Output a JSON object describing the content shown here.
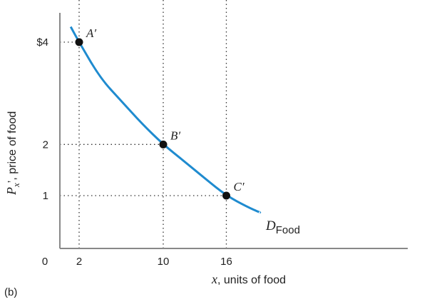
{
  "chart_data": {
    "type": "line",
    "panel_label": "(b)",
    "xlabel": {
      "var": "x",
      "rest": ", units of food"
    },
    "ylabel": {
      "var": "P",
      "sub": "x",
      "rest": "’, price of food"
    },
    "origin_label": "0",
    "x_ticks": [
      "2",
      "10",
      "16"
    ],
    "y_ticks": [
      "$4",
      "2",
      "1"
    ],
    "series": [
      {
        "name": "D",
        "name_sub": "Food",
        "color": "#1f8bcf",
        "x": [
          1.2,
          2,
          4,
          6,
          8,
          10,
          12,
          14,
          16,
          18,
          19.2
        ],
        "y": [
          4.3,
          4,
          3.3,
          2.85,
          2.4,
          2,
          1.67,
          1.33,
          1,
          0.78,
          0.67
        ]
      }
    ],
    "points": [
      {
        "label": "A′",
        "x": 2,
        "y": 4
      },
      {
        "label": "B′",
        "x": 10,
        "y": 2
      },
      {
        "label": "C′",
        "x": 16,
        "y": 1
      }
    ],
    "guide_lines": "dotted",
    "grid": false
  }
}
